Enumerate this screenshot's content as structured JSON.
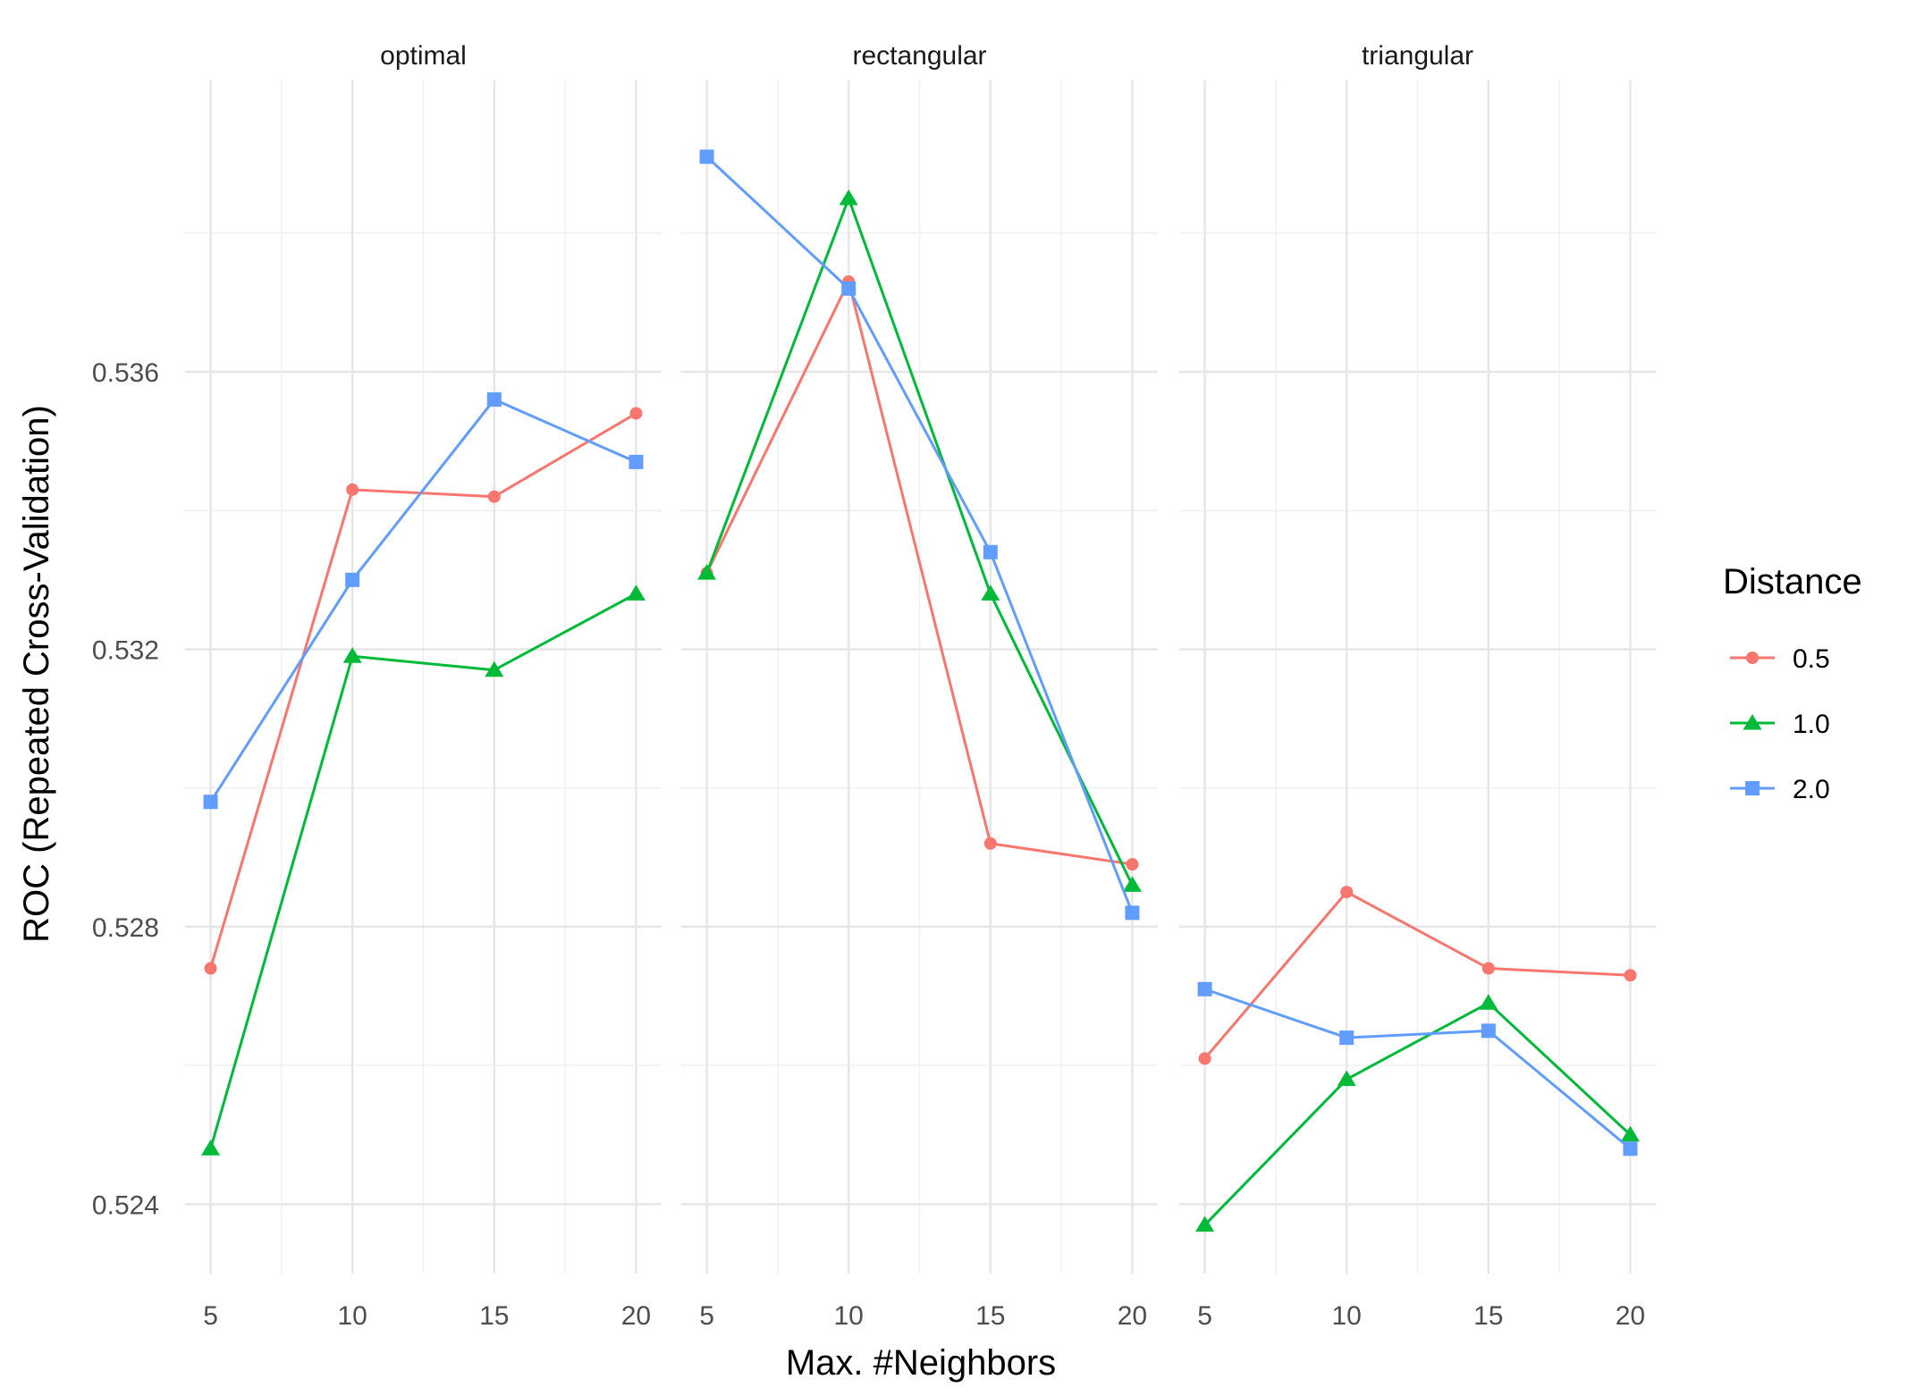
{
  "chart_data": {
    "type": "line",
    "facets": [
      "optimal",
      "rectangular",
      "triangular"
    ],
    "x": [
      5,
      10,
      15,
      20
    ],
    "xticks": [
      "5",
      "10",
      "15",
      "20"
    ],
    "yticks": [
      "0.524",
      "0.528",
      "0.532",
      "0.536"
    ],
    "xlim": [
      4.1,
      20.9
    ],
    "ylim": [
      0.523,
      0.5402
    ],
    "xlabel": "Max. #Neighbors",
    "ylabel": "ROC (Repeated Cross-Validation)",
    "grid": true,
    "legend": {
      "title": "Distance",
      "placement": "right",
      "entries": [
        "0.5",
        "1.0",
        "2.0"
      ]
    },
    "series": [
      {
        "name": "0.5",
        "color": "#F8766D",
        "marker": "circle",
        "values": {
          "optimal": [
            0.5274,
            0.5343,
            0.5342,
            0.5354
          ],
          "rectangular": [
            0.5331,
            0.5373,
            0.5292,
            0.5289
          ],
          "triangular": [
            0.5261,
            0.5285,
            0.5274,
            0.5273
          ]
        }
      },
      {
        "name": "1.0",
        "color": "#00BA38",
        "marker": "triangle",
        "values": {
          "optimal": [
            0.5248,
            0.5319,
            0.5317,
            0.5328
          ],
          "rectangular": [
            0.5331,
            0.5385,
            0.5328,
            0.5286
          ],
          "triangular": [
            0.5237,
            0.5258,
            0.5269,
            0.525
          ]
        }
      },
      {
        "name": "2.0",
        "color": "#619CFF",
        "marker": "square",
        "values": {
          "optimal": [
            0.5298,
            0.533,
            0.5356,
            0.5347
          ],
          "rectangular": [
            0.5391,
            0.5372,
            0.5334,
            0.5282
          ],
          "triangular": [
            0.5271,
            0.5264,
            0.5265,
            0.5248
          ]
        }
      }
    ]
  }
}
